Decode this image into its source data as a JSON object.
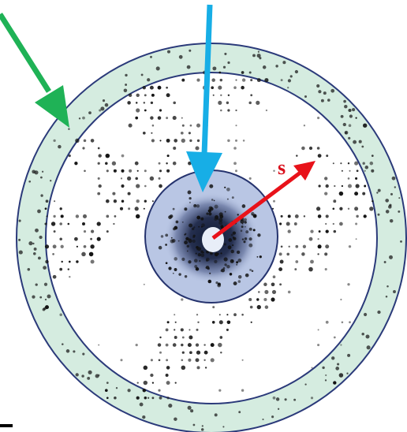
{
  "diagram": {
    "vector_label": "s",
    "colors": {
      "background": "#ffffff",
      "outer_ring_fill": "#d5ece0",
      "ring_stroke": "#2b3a7a",
      "inner_disk_fill": "#b9c6e4",
      "inner_disk_stroke": "#25336e",
      "spot_color": "#111111",
      "center_cloud": "#1d2747",
      "beamstop": "#e8eef8",
      "green_arrow": "#1fb256",
      "blue_arrow": "#17aee6",
      "red_arrow": "#e8121a",
      "label_color": "#d9101c"
    }
  }
}
